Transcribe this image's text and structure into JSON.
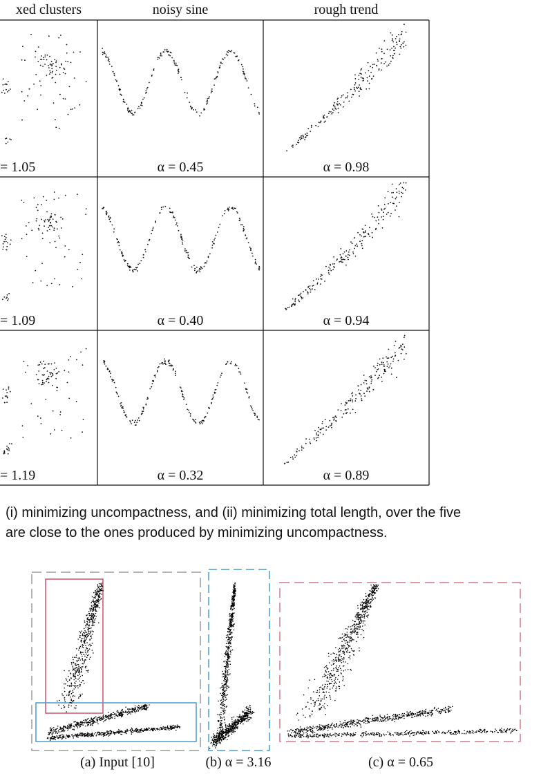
{
  "grid": {
    "columns": [
      "xed clusters",
      "noisy sine",
      "rough trend"
    ],
    "rows": [
      {
        "alphas": [
          "= 1.05",
          "α = 0.45",
          "α = 0.98"
        ]
      },
      {
        "alphas": [
          "= 1.09",
          "α = 0.40",
          "α = 0.94"
        ]
      },
      {
        "alphas": [
          "= 1.19",
          "α = 0.32",
          "α = 0.89"
        ]
      }
    ]
  },
  "caption": {
    "line1": "(i) minimizing uncompactness, and (ii) minimizing total length, over the five",
    "line2": "are close to the ones produced by minimizing uncompactness."
  },
  "bottom_figure": {
    "panels": [
      {
        "label": "(a) Input [10]",
        "box_color": "#9a9a9a"
      },
      {
        "label": "(b) α = 3.16",
        "box_color": "#4a9bd0"
      },
      {
        "label": "(c) α = 0.65",
        "box_color": "#d07a88"
      }
    ],
    "highlight_colors": {
      "red": "#d0506a",
      "blue": "#4a9bd0"
    }
  }
}
